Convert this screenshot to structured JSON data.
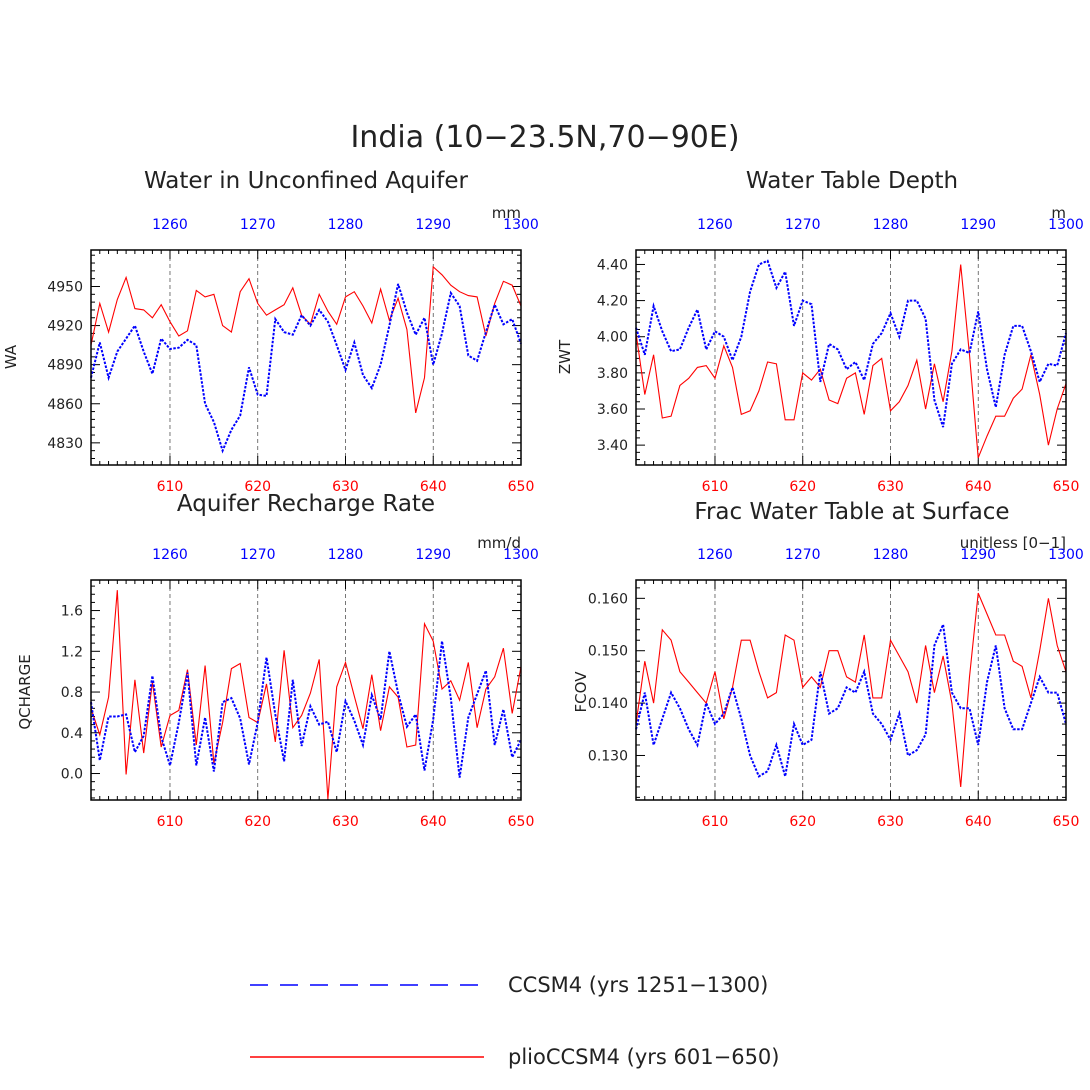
{
  "figure_title": "India (10−23.5N,70−90E)",
  "colors": {
    "ccsm4": "#0000ff",
    "plio": "#ff0000",
    "axis": "#000000",
    "red_ticks": "#ff0000",
    "blue_ticks": "#0000ff"
  },
  "legend": [
    {
      "label": "CCSM4 (yrs 1251−1300)",
      "color": "#0000ff",
      "style": "dashed"
    },
    {
      "label": "plioCCSM4 (yrs 601−650)",
      "color": "#ff0000",
      "style": "solid"
    }
  ],
  "chart_data": [
    {
      "type": "line",
      "title": "Water in Unconfined Aquifer",
      "ylabel": "WA",
      "units": "mm",
      "ylim": [
        4813,
        4978
      ],
      "yticks": [
        4830,
        4860,
        4890,
        4920,
        4950
      ],
      "ytick_labels": [
        "4830",
        "4860",
        "4890",
        "4920",
        "4950"
      ],
      "bottom_x": {
        "range": [
          601,
          650
        ],
        "ticks": [
          610,
          620,
          630,
          640,
          650
        ]
      },
      "top_x": {
        "range": [
          1251,
          1300
        ],
        "ticks": [
          1260,
          1270,
          1280,
          1290,
          1300
        ]
      },
      "series": [
        {
          "name": "plioCCSM4 (yrs 601-650)",
          "values": [
            4905,
            4937,
            4915,
            4940,
            4957,
            4933,
            4932,
            4926,
            4936,
            4923,
            4912,
            4916,
            4947,
            4942,
            4944,
            4920,
            4915,
            4946,
            4956,
            4937,
            4928,
            4932,
            4936,
            4949,
            4928,
            4921,
            4944,
            4931,
            4921,
            4942,
            4946,
            4935,
            4922,
            4948,
            4924,
            4941,
            4917,
            4853,
            4880,
            4965,
            4959,
            4951,
            4946,
            4943,
            4942,
            4912,
            4937,
            4954,
            4951,
            4935
          ]
        },
        {
          "name": "CCSM4 (yrs 1251-1300)",
          "values": [
            4880,
            4907,
            4880,
            4900,
            4910,
            4920,
            4900,
            4883,
            4910,
            4902,
            4903,
            4909,
            4905,
            4860,
            4846,
            4824,
            4840,
            4851,
            4888,
            4867,
            4866,
            4925,
            4915,
            4913,
            4928,
            4920,
            4932,
            4923,
            4905,
            4886,
            4907,
            4882,
            4872,
            4890,
            4920,
            4952,
            4930,
            4913,
            4926,
            4890,
            4914,
            4945,
            4935,
            4897,
            4893,
            4915,
            4936,
            4921,
            4925,
            4906
          ]
        }
      ]
    },
    {
      "type": "line",
      "title": "Water Table Depth",
      "ylabel": "ZWT",
      "units": "m",
      "ylim": [
        3.29,
        4.48
      ],
      "yticks": [
        3.4,
        3.6,
        3.8,
        4.0,
        4.2,
        4.4
      ],
      "ytick_labels": [
        "3.40",
        "3.60",
        "3.80",
        "4.00",
        "4.20",
        "4.40"
      ],
      "bottom_x": {
        "range": [
          601,
          650
        ],
        "ticks": [
          610,
          620,
          630,
          640,
          650
        ]
      },
      "top_x": {
        "range": [
          1251,
          1300
        ],
        "ticks": [
          1260,
          1270,
          1280,
          1290,
          1300
        ]
      },
      "series": [
        {
          "name": "plioCCSM4 (yrs 601-650)",
          "values": [
            4.02,
            3.68,
            3.9,
            3.55,
            3.56,
            3.73,
            3.77,
            3.83,
            3.84,
            3.77,
            3.95,
            3.83,
            3.57,
            3.59,
            3.7,
            3.86,
            3.85,
            3.54,
            3.54,
            3.8,
            3.76,
            3.82,
            3.65,
            3.63,
            3.77,
            3.8,
            3.57,
            3.84,
            3.88,
            3.59,
            3.64,
            3.73,
            3.87,
            3.6,
            3.85,
            3.64,
            3.92,
            4.4,
            3.9,
            3.33,
            3.45,
            3.56,
            3.56,
            3.66,
            3.71,
            3.9,
            3.68,
            3.4,
            3.6,
            3.74
          ]
        },
        {
          "name": "CCSM4 (yrs 1251-1300)",
          "values": [
            4.05,
            3.9,
            4.17,
            4.03,
            3.92,
            3.93,
            4.05,
            4.15,
            3.93,
            4.03,
            4.0,
            3.87,
            4.0,
            4.25,
            4.4,
            4.42,
            4.27,
            4.36,
            4.06,
            4.2,
            4.18,
            3.75,
            3.96,
            3.93,
            3.82,
            3.86,
            3.76,
            3.96,
            4.02,
            4.13,
            4.0,
            4.2,
            4.2,
            4.1,
            3.65,
            3.5,
            3.85,
            3.93,
            3.91,
            4.14,
            3.82,
            3.61,
            3.9,
            4.06,
            4.06,
            3.92,
            3.75,
            3.85,
            3.84,
            4.02
          ]
        }
      ]
    },
    {
      "type": "line",
      "title": "Aquifer Recharge Rate",
      "ylabel": "QCHARGE",
      "units": "mm/d",
      "ylim": [
        -0.26,
        1.9
      ],
      "yticks": [
        0.0,
        0.4,
        0.8,
        1.2,
        1.6
      ],
      "ytick_labels": [
        "0.0",
        "0.4",
        "0.8",
        "1.2",
        "1.6"
      ],
      "bottom_x": {
        "range": [
          601,
          650
        ],
        "ticks": [
          610,
          620,
          630,
          640,
          650
        ]
      },
      "top_x": {
        "range": [
          1251,
          1300
        ],
        "ticks": [
          1260,
          1270,
          1280,
          1290,
          1300
        ]
      },
      "series": [
        {
          "name": "plioCCSM4 (yrs 601-650)",
          "values": [
            0.64,
            0.38,
            0.75,
            1.8,
            -0.01,
            0.92,
            0.2,
            0.9,
            0.26,
            0.57,
            0.62,
            1.02,
            0.28,
            1.06,
            0.1,
            0.5,
            1.03,
            1.08,
            0.55,
            0.5,
            0.88,
            0.31,
            1.21,
            0.45,
            0.57,
            0.79,
            1.12,
            -0.25,
            0.85,
            1.09,
            0.76,
            0.44,
            0.97,
            0.42,
            0.85,
            0.75,
            0.26,
            0.28,
            1.47,
            1.3,
            0.83,
            0.91,
            0.72,
            1.09,
            0.45,
            0.83,
            0.95,
            1.23,
            0.59,
            1.05
          ]
        },
        {
          "name": "CCSM4 (yrs 1251-1300)",
          "values": [
            0.7,
            0.13,
            0.56,
            0.56,
            0.58,
            0.21,
            0.37,
            0.96,
            0.36,
            0.08,
            0.5,
            0.99,
            0.08,
            0.55,
            0.02,
            0.7,
            0.74,
            0.54,
            0.09,
            0.5,
            1.14,
            0.58,
            0.12,
            0.92,
            0.27,
            0.66,
            0.48,
            0.51,
            0.21,
            0.71,
            0.52,
            0.28,
            0.77,
            0.53,
            1.2,
            0.79,
            0.46,
            0.58,
            0.03,
            0.53,
            1.3,
            0.74,
            -0.04,
            0.55,
            0.78,
            1.01,
            0.28,
            0.63,
            0.16,
            0.33
          ]
        }
      ]
    },
    {
      "type": "line",
      "title": "Frac Water Table at Surface",
      "ylabel": "FCOV",
      "units": "unitless [0−1]",
      "ylim": [
        0.1215,
        0.1635
      ],
      "yticks": [
        0.13,
        0.14,
        0.15,
        0.16
      ],
      "ytick_labels": [
        "0.130",
        "0.140",
        "0.150",
        "0.160"
      ],
      "bottom_x": {
        "range": [
          601,
          650
        ],
        "ticks": [
          610,
          620,
          630,
          640,
          650
        ]
      },
      "top_x": {
        "range": [
          1251,
          1300
        ],
        "ticks": [
          1260,
          1270,
          1280,
          1290,
          1300
        ]
      },
      "series": [
        {
          "name": "plioCCSM4 (yrs 601-650)",
          "values": [
            0.136,
            0.148,
            0.14,
            0.154,
            0.152,
            0.146,
            0.144,
            0.142,
            0.14,
            0.146,
            0.137,
            0.143,
            0.152,
            0.152,
            0.146,
            0.141,
            0.142,
            0.153,
            0.152,
            0.143,
            0.145,
            0.143,
            0.15,
            0.15,
            0.145,
            0.144,
            0.153,
            0.141,
            0.141,
            0.152,
            0.149,
            0.146,
            0.14,
            0.151,
            0.142,
            0.149,
            0.14,
            0.124,
            0.145,
            0.161,
            0.157,
            0.153,
            0.153,
            0.148,
            0.147,
            0.141,
            0.15,
            0.16,
            0.151,
            0.146
          ]
        },
        {
          "name": "CCSM4 (yrs 1251-1300)",
          "values": [
            0.135,
            0.142,
            0.132,
            0.137,
            0.142,
            0.139,
            0.135,
            0.132,
            0.14,
            0.136,
            0.138,
            0.143,
            0.137,
            0.13,
            0.126,
            0.127,
            0.132,
            0.126,
            0.136,
            0.132,
            0.133,
            0.146,
            0.138,
            0.139,
            0.143,
            0.142,
            0.146,
            0.138,
            0.136,
            0.133,
            0.138,
            0.13,
            0.131,
            0.134,
            0.151,
            0.155,
            0.142,
            0.139,
            0.139,
            0.132,
            0.144,
            0.151,
            0.139,
            0.135,
            0.135,
            0.14,
            0.145,
            0.142,
            0.142,
            0.136
          ]
        }
      ]
    }
  ]
}
